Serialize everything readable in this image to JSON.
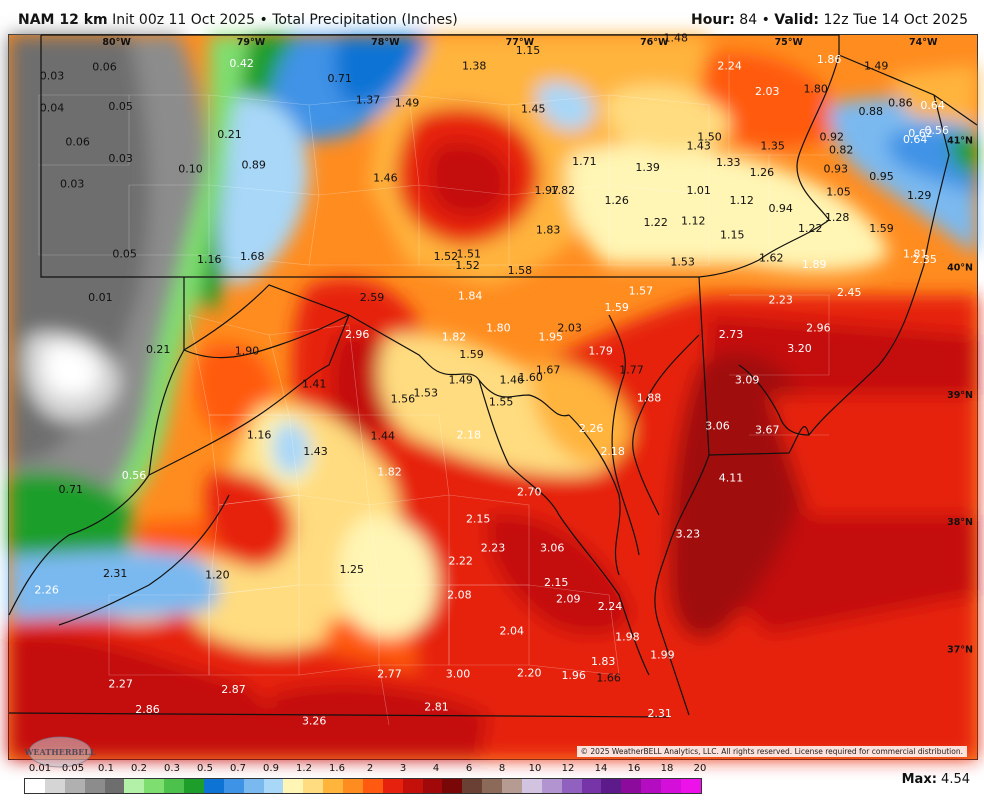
{
  "header": {
    "model": "NAM 12 km",
    "init": "Init 00z 11 Oct 2025",
    "separator": "•",
    "product": "Total Precipitation (Inches)",
    "hour_label": "Hour:",
    "hour_value": "84",
    "valid_label": "Valid:",
    "valid_value": "12z Tue 14 Oct 2025"
  },
  "map": {
    "longitude_labels": [
      "80°W",
      "79°W",
      "78°W",
      "77°W",
      "76°W",
      "75°W",
      "74°W"
    ],
    "latitude_labels": [
      "41°N",
      "40°N",
      "39°N",
      "38°N",
      "37°N"
    ],
    "copyright": "© 2025 WeatherBELL Analytics, LLC. All rights reserved. License required for commercial distribution.",
    "logo_text": "WEATHERBELL",
    "values": [
      {
        "t": "0.03",
        "lng": -80.48,
        "lat": 41.47,
        "c": "#111"
      },
      {
        "t": "0.06",
        "lng": -80.09,
        "lat": 41.54,
        "c": "#111"
      },
      {
        "t": "0.04",
        "lng": -80.48,
        "lat": 41.22,
        "c": "#111"
      },
      {
        "t": "0.05",
        "lng": -79.97,
        "lat": 41.23,
        "c": "#111"
      },
      {
        "t": "0.06",
        "lng": -80.29,
        "lat": 40.95,
        "c": "#111"
      },
      {
        "t": "0.03",
        "lng": -79.97,
        "lat": 40.82,
        "c": "#111"
      },
      {
        "t": "0.03",
        "lng": -80.33,
        "lat": 40.62,
        "c": "#111"
      },
      {
        "t": "0.10",
        "lng": -79.45,
        "lat": 40.74,
        "c": "#111"
      },
      {
        "t": "0.05",
        "lng": -79.94,
        "lat": 40.07,
        "c": "#111"
      },
      {
        "t": "0.01",
        "lng": -80.12,
        "lat": 39.73,
        "c": "#111"
      },
      {
        "t": "0.21",
        "lng": -79.69,
        "lat": 39.32,
        "c": "#111"
      },
      {
        "t": "0.42",
        "lng": -79.07,
        "lat": 41.57,
        "c": "#fff"
      },
      {
        "t": "0.21",
        "lng": -79.16,
        "lat": 41.01,
        "c": "#111"
      },
      {
        "t": "0.71",
        "lng": -78.34,
        "lat": 41.45,
        "c": "#111"
      },
      {
        "t": "0.89",
        "lng": -78.98,
        "lat": 40.77,
        "c": "#111"
      },
      {
        "t": "1.16",
        "lng": -79.31,
        "lat": 40.03,
        "c": "#111"
      },
      {
        "t": "1.68",
        "lng": -78.99,
        "lat": 40.05,
        "c": "#111"
      },
      {
        "t": "1.37",
        "lng": -78.13,
        "lat": 41.28,
        "c": "#111"
      },
      {
        "t": "1.49",
        "lng": -77.84,
        "lat": 41.26,
        "c": "#111"
      },
      {
        "t": "1.38",
        "lng": -77.34,
        "lat": 41.55,
        "c": "#111"
      },
      {
        "t": "1.15",
        "lng": -76.94,
        "lat": 41.67,
        "c": "#111"
      },
      {
        "t": "1.48",
        "lng": -75.84,
        "lat": 41.77,
        "c": "#111"
      },
      {
        "t": "2.24",
        "lng": -75.44,
        "lat": 41.55,
        "c": "#fff"
      },
      {
        "t": "1.86",
        "lng": -74.7,
        "lat": 41.6,
        "c": "#fff"
      },
      {
        "t": "1.49",
        "lng": -74.35,
        "lat": 41.55,
        "c": "#111"
      },
      {
        "t": "2.03",
        "lng": -75.16,
        "lat": 41.35,
        "c": "#fff"
      },
      {
        "t": "1.80",
        "lng": -74.8,
        "lat": 41.37,
        "c": "#111"
      },
      {
        "t": "0.86",
        "lng": -74.17,
        "lat": 41.26,
        "c": "#111"
      },
      {
        "t": "0.64",
        "lng": -73.93,
        "lat": 41.24,
        "c": "#fff"
      },
      {
        "t": "0.88",
        "lng": -74.39,
        "lat": 41.19,
        "c": "#111"
      },
      {
        "t": "1.45",
        "lng": -76.9,
        "lat": 41.21,
        "c": "#111"
      },
      {
        "t": "1.50",
        "lng": -75.59,
        "lat": 40.99,
        "c": "#111"
      },
      {
        "t": "1.43",
        "lng": -75.67,
        "lat": 40.92,
        "c": "#111"
      },
      {
        "t": "1.35",
        "lng": -75.12,
        "lat": 40.92,
        "c": "#111"
      },
      {
        "t": "0.92",
        "lng": -74.68,
        "lat": 40.99,
        "c": "#111"
      },
      {
        "t": "0.62",
        "lng": -74.02,
        "lat": 41.02,
        "c": "#fff"
      },
      {
        "t": "0.56",
        "lng": -73.9,
        "lat": 41.04,
        "c": "#fff"
      },
      {
        "t": "0.64",
        "lng": -74.06,
        "lat": 40.97,
        "c": "#fff"
      },
      {
        "t": "0.82",
        "lng": -74.61,
        "lat": 40.89,
        "c": "#111"
      },
      {
        "t": "1.71",
        "lng": -76.52,
        "lat": 40.8,
        "c": "#111"
      },
      {
        "t": "1.39",
        "lng": -76.05,
        "lat": 40.75,
        "c": "#111"
      },
      {
        "t": "1.33",
        "lng": -75.45,
        "lat": 40.79,
        "c": "#111"
      },
      {
        "t": "0.93",
        "lng": -74.65,
        "lat": 40.74,
        "c": "#111"
      },
      {
        "t": "1.26",
        "lng": -75.2,
        "lat": 40.71,
        "c": "#111"
      },
      {
        "t": "0.95",
        "lng": -74.31,
        "lat": 40.68,
        "c": "#111"
      },
      {
        "t": "1.46",
        "lng": -78.0,
        "lat": 40.67,
        "c": "#111"
      },
      {
        "t": "1.97",
        "lng": -76.8,
        "lat": 40.57,
        "c": "#111"
      },
      {
        "t": "1.82",
        "lng": -76.68,
        "lat": 40.57,
        "c": "#111"
      },
      {
        "t": "1.26",
        "lng": -76.28,
        "lat": 40.49,
        "c": "#111"
      },
      {
        "t": "1.01",
        "lng": -75.67,
        "lat": 40.57,
        "c": "#111"
      },
      {
        "t": "1.12",
        "lng": -75.35,
        "lat": 40.49,
        "c": "#111"
      },
      {
        "t": "1.05",
        "lng": -74.63,
        "lat": 40.56,
        "c": "#111"
      },
      {
        "t": "1.29",
        "lng": -74.03,
        "lat": 40.53,
        "c": "#111"
      },
      {
        "t": "0.94",
        "lng": -75.06,
        "lat": 40.43,
        "c": "#111"
      },
      {
        "t": "1.28",
        "lng": -74.64,
        "lat": 40.36,
        "c": "#111"
      },
      {
        "t": "1.22",
        "lng": -75.99,
        "lat": 40.32,
        "c": "#111"
      },
      {
        "t": "1.12",
        "lng": -75.71,
        "lat": 40.33,
        "c": "#111"
      },
      {
        "t": "1.22",
        "lng": -74.84,
        "lat": 40.27,
        "c": "#111"
      },
      {
        "t": "1.59",
        "lng": -74.31,
        "lat": 40.27,
        "c": "#111"
      },
      {
        "t": "1.83",
        "lng": -76.79,
        "lat": 40.26,
        "c": "#111"
      },
      {
        "t": "1.15",
        "lng": -75.42,
        "lat": 40.22,
        "c": "#111"
      },
      {
        "t": "1.81",
        "lng": -74.06,
        "lat": 40.07,
        "c": "#fff"
      },
      {
        "t": "2.35",
        "lng": -73.99,
        "lat": 40.03,
        "c": "#fff"
      },
      {
        "t": "1.52",
        "lng": -77.55,
        "lat": 40.05,
        "c": "#111"
      },
      {
        "t": "1.51",
        "lng": -77.38,
        "lat": 40.07,
        "c": "#111"
      },
      {
        "t": "1.52",
        "lng": -77.39,
        "lat": 39.98,
        "c": "#111"
      },
      {
        "t": "1.58",
        "lng": -77.0,
        "lat": 39.94,
        "c": "#111"
      },
      {
        "t": "1.53",
        "lng": -75.79,
        "lat": 40.01,
        "c": "#111"
      },
      {
        "t": "1.62",
        "lng": -75.13,
        "lat": 40.04,
        "c": "#111"
      },
      {
        "t": "1.89",
        "lng": -74.81,
        "lat": 39.99,
        "c": "#fff"
      },
      {
        "t": "2.59",
        "lng": -78.1,
        "lat": 39.73,
        "c": "#111"
      },
      {
        "t": "1.84",
        "lng": -77.37,
        "lat": 39.74,
        "c": "#fff"
      },
      {
        "t": "1.57",
        "lng": -76.1,
        "lat": 39.78,
        "c": "#fff"
      },
      {
        "t": "1.59",
        "lng": -76.28,
        "lat": 39.65,
        "c": "#fff"
      },
      {
        "t": "2.23",
        "lng": -75.06,
        "lat": 39.71,
        "c": "#fff"
      },
      {
        "t": "2.45",
        "lng": -74.55,
        "lat": 39.77,
        "c": "#fff"
      },
      {
        "t": "2.96",
        "lng": -78.21,
        "lat": 39.44,
        "c": "#fff"
      },
      {
        "t": "1.80",
        "lng": -77.16,
        "lat": 39.49,
        "c": "#fff"
      },
      {
        "t": "2.03",
        "lng": -76.63,
        "lat": 39.49,
        "c": "#111"
      },
      {
        "t": "1.95",
        "lng": -76.77,
        "lat": 39.42,
        "c": "#fff"
      },
      {
        "t": "1.82",
        "lng": -77.49,
        "lat": 39.42,
        "c": "#fff"
      },
      {
        "t": "2.73",
        "lng": -75.43,
        "lat": 39.44,
        "c": "#fff"
      },
      {
        "t": "2.96",
        "lng": -74.78,
        "lat": 39.49,
        "c": "#fff"
      },
      {
        "t": "1.90",
        "lng": -79.03,
        "lat": 39.31,
        "c": "#111"
      },
      {
        "t": "1.59",
        "lng": -77.36,
        "lat": 39.28,
        "c": "#111"
      },
      {
        "t": "1.79",
        "lng": -76.4,
        "lat": 39.31,
        "c": "#fff"
      },
      {
        "t": "3.20",
        "lng": -74.92,
        "lat": 39.33,
        "c": "#fff"
      },
      {
        "t": "1.67",
        "lng": -76.79,
        "lat": 39.16,
        "c": "#111"
      },
      {
        "t": "1.60",
        "lng": -76.92,
        "lat": 39.1,
        "c": "#111"
      },
      {
        "t": "1.77",
        "lng": -76.17,
        "lat": 39.16,
        "c": "#111"
      },
      {
        "t": "1.49",
        "lng": -77.44,
        "lat": 39.08,
        "c": "#111"
      },
      {
        "t": "1.46",
        "lng": -77.06,
        "lat": 39.08,
        "c": "#111"
      },
      {
        "t": "3.09",
        "lng": -75.31,
        "lat": 39.08,
        "c": "#fff"
      },
      {
        "t": "1.41",
        "lng": -78.53,
        "lat": 39.05,
        "c": "#111"
      },
      {
        "t": "1.53",
        "lng": -77.7,
        "lat": 38.98,
        "c": "#111"
      },
      {
        "t": "1.56",
        "lng": -77.87,
        "lat": 38.93,
        "c": "#111"
      },
      {
        "t": "1.88",
        "lng": -76.04,
        "lat": 38.94,
        "c": "#fff"
      },
      {
        "t": "1.55",
        "lng": -77.14,
        "lat": 38.91,
        "c": "#111"
      },
      {
        "t": "2.26",
        "lng": -76.47,
        "lat": 38.7,
        "c": "#fff"
      },
      {
        "t": "3.06",
        "lng": -75.53,
        "lat": 38.72,
        "c": "#fff"
      },
      {
        "t": "3.67",
        "lng": -75.16,
        "lat": 38.69,
        "c": "#fff"
      },
      {
        "t": "2.18",
        "lng": -77.38,
        "lat": 38.65,
        "c": "#fff"
      },
      {
        "t": "1.16",
        "lng": -78.94,
        "lat": 38.65,
        "c": "#111"
      },
      {
        "t": "1.44",
        "lng": -78.02,
        "lat": 38.64,
        "c": "#111"
      },
      {
        "t": "2.18",
        "lng": -76.31,
        "lat": 38.52,
        "c": "#fff"
      },
      {
        "t": "1.43",
        "lng": -78.52,
        "lat": 38.52,
        "c": "#111"
      },
      {
        "t": "1.82",
        "lng": -77.97,
        "lat": 38.36,
        "c": "#fff"
      },
      {
        "t": "0.56",
        "lng": -79.87,
        "lat": 38.33,
        "c": "#fff"
      },
      {
        "t": "4.11",
        "lng": -75.43,
        "lat": 38.31,
        "c": "#fff"
      },
      {
        "t": "0.71",
        "lng": -80.34,
        "lat": 38.22,
        "c": "#111"
      },
      {
        "t": "2.70",
        "lng": -76.93,
        "lat": 38.2,
        "c": "#fff"
      },
      {
        "t": "2.15",
        "lng": -77.31,
        "lat": 37.99,
        "c": "#fff"
      },
      {
        "t": "3.23",
        "lng": -75.75,
        "lat": 37.87,
        "c": "#fff"
      },
      {
        "t": "3.06",
        "lng": -76.76,
        "lat": 37.76,
        "c": "#fff"
      },
      {
        "t": "2.23",
        "lng": -77.2,
        "lat": 37.76,
        "c": "#fff"
      },
      {
        "t": "2.22",
        "lng": -77.44,
        "lat": 37.66,
        "c": "#fff"
      },
      {
        "t": "2.31",
        "lng": -80.01,
        "lat": 37.56,
        "c": "#111"
      },
      {
        "t": "1.20",
        "lng": -79.25,
        "lat": 37.55,
        "c": "#111"
      },
      {
        "t": "1.25",
        "lng": -78.25,
        "lat": 37.59,
        "c": "#111"
      },
      {
        "t": "2.15",
        "lng": -76.73,
        "lat": 37.49,
        "c": "#fff"
      },
      {
        "t": "2.26",
        "lng": -80.52,
        "lat": 37.43,
        "c": "#fff"
      },
      {
        "t": "2.08",
        "lng": -77.45,
        "lat": 37.39,
        "c": "#fff"
      },
      {
        "t": "2.09",
        "lng": -76.64,
        "lat": 37.36,
        "c": "#fff"
      },
      {
        "t": "2.24",
        "lng": -76.33,
        "lat": 37.3,
        "c": "#fff"
      },
      {
        "t": "2.04",
        "lng": -77.06,
        "lat": 37.11,
        "c": "#fff"
      },
      {
        "t": "1.98",
        "lng": -76.2,
        "lat": 37.06,
        "c": "#fff"
      },
      {
        "t": "1.99",
        "lng": -75.94,
        "lat": 36.92,
        "c": "#fff"
      },
      {
        "t": "1.83",
        "lng": -76.38,
        "lat": 36.87,
        "c": "#fff"
      },
      {
        "t": "2.77",
        "lng": -77.97,
        "lat": 36.77,
        "c": "#fff"
      },
      {
        "t": "3.00",
        "lng": -77.46,
        "lat": 36.77,
        "c": "#fff"
      },
      {
        "t": "2.20",
        "lng": -76.93,
        "lat": 36.78,
        "c": "#fff"
      },
      {
        "t": "1.96",
        "lng": -76.6,
        "lat": 36.76,
        "c": "#fff"
      },
      {
        "t": "1.66",
        "lng": -76.34,
        "lat": 36.74,
        "c": "#111"
      },
      {
        "t": "2.27",
        "lng": -79.97,
        "lat": 36.69,
        "c": "#fff"
      },
      {
        "t": "2.87",
        "lng": -79.13,
        "lat": 36.65,
        "c": "#fff"
      },
      {
        "t": "2.86",
        "lng": -79.77,
        "lat": 36.49,
        "c": "#fff"
      },
      {
        "t": "2.81",
        "lng": -77.62,
        "lat": 36.51,
        "c": "#fff"
      },
      {
        "t": "2.31",
        "lng": -75.96,
        "lat": 36.46,
        "c": "#fff"
      },
      {
        "t": "3.26",
        "lng": -78.53,
        "lat": 36.4,
        "c": "#fff"
      }
    ]
  },
  "legend": {
    "title": "Total Precipitation (Inches)",
    "labels": [
      "0.01",
      "0.05",
      "0.1",
      "0.2",
      "0.3",
      "0.5",
      "0.7",
      "0.9",
      "1.2",
      "1.6",
      "2",
      "3",
      "4",
      "6",
      "8",
      "10",
      "12",
      "14",
      "16",
      "18",
      "20"
    ],
    "colors": [
      "#ffffff",
      "#d5d5d5",
      "#b0b0b0",
      "#8c8c8c",
      "#6e6e6e",
      "#b3f0a8",
      "#7fde70",
      "#4cc24c",
      "#1d9e2b",
      "#0d73d4",
      "#3f93e6",
      "#7ab9f0",
      "#a8d7f8",
      "#fff5b4",
      "#ffdc7f",
      "#ffb43c",
      "#ff8c1f",
      "#ff5a0f",
      "#e6220e",
      "#c4100b",
      "#a0080a",
      "#7a0708",
      "#694033",
      "#8c6a5a",
      "#b59b91",
      "#d2c3e0",
      "#b294d1",
      "#9161bf",
      "#7733a8",
      "#5d1a8a",
      "#8c0b9c",
      "#b30cc1",
      "#d40fd9",
      "#ee12ea"
    ],
    "max_label": "Max:",
    "max_value": "4.54"
  }
}
